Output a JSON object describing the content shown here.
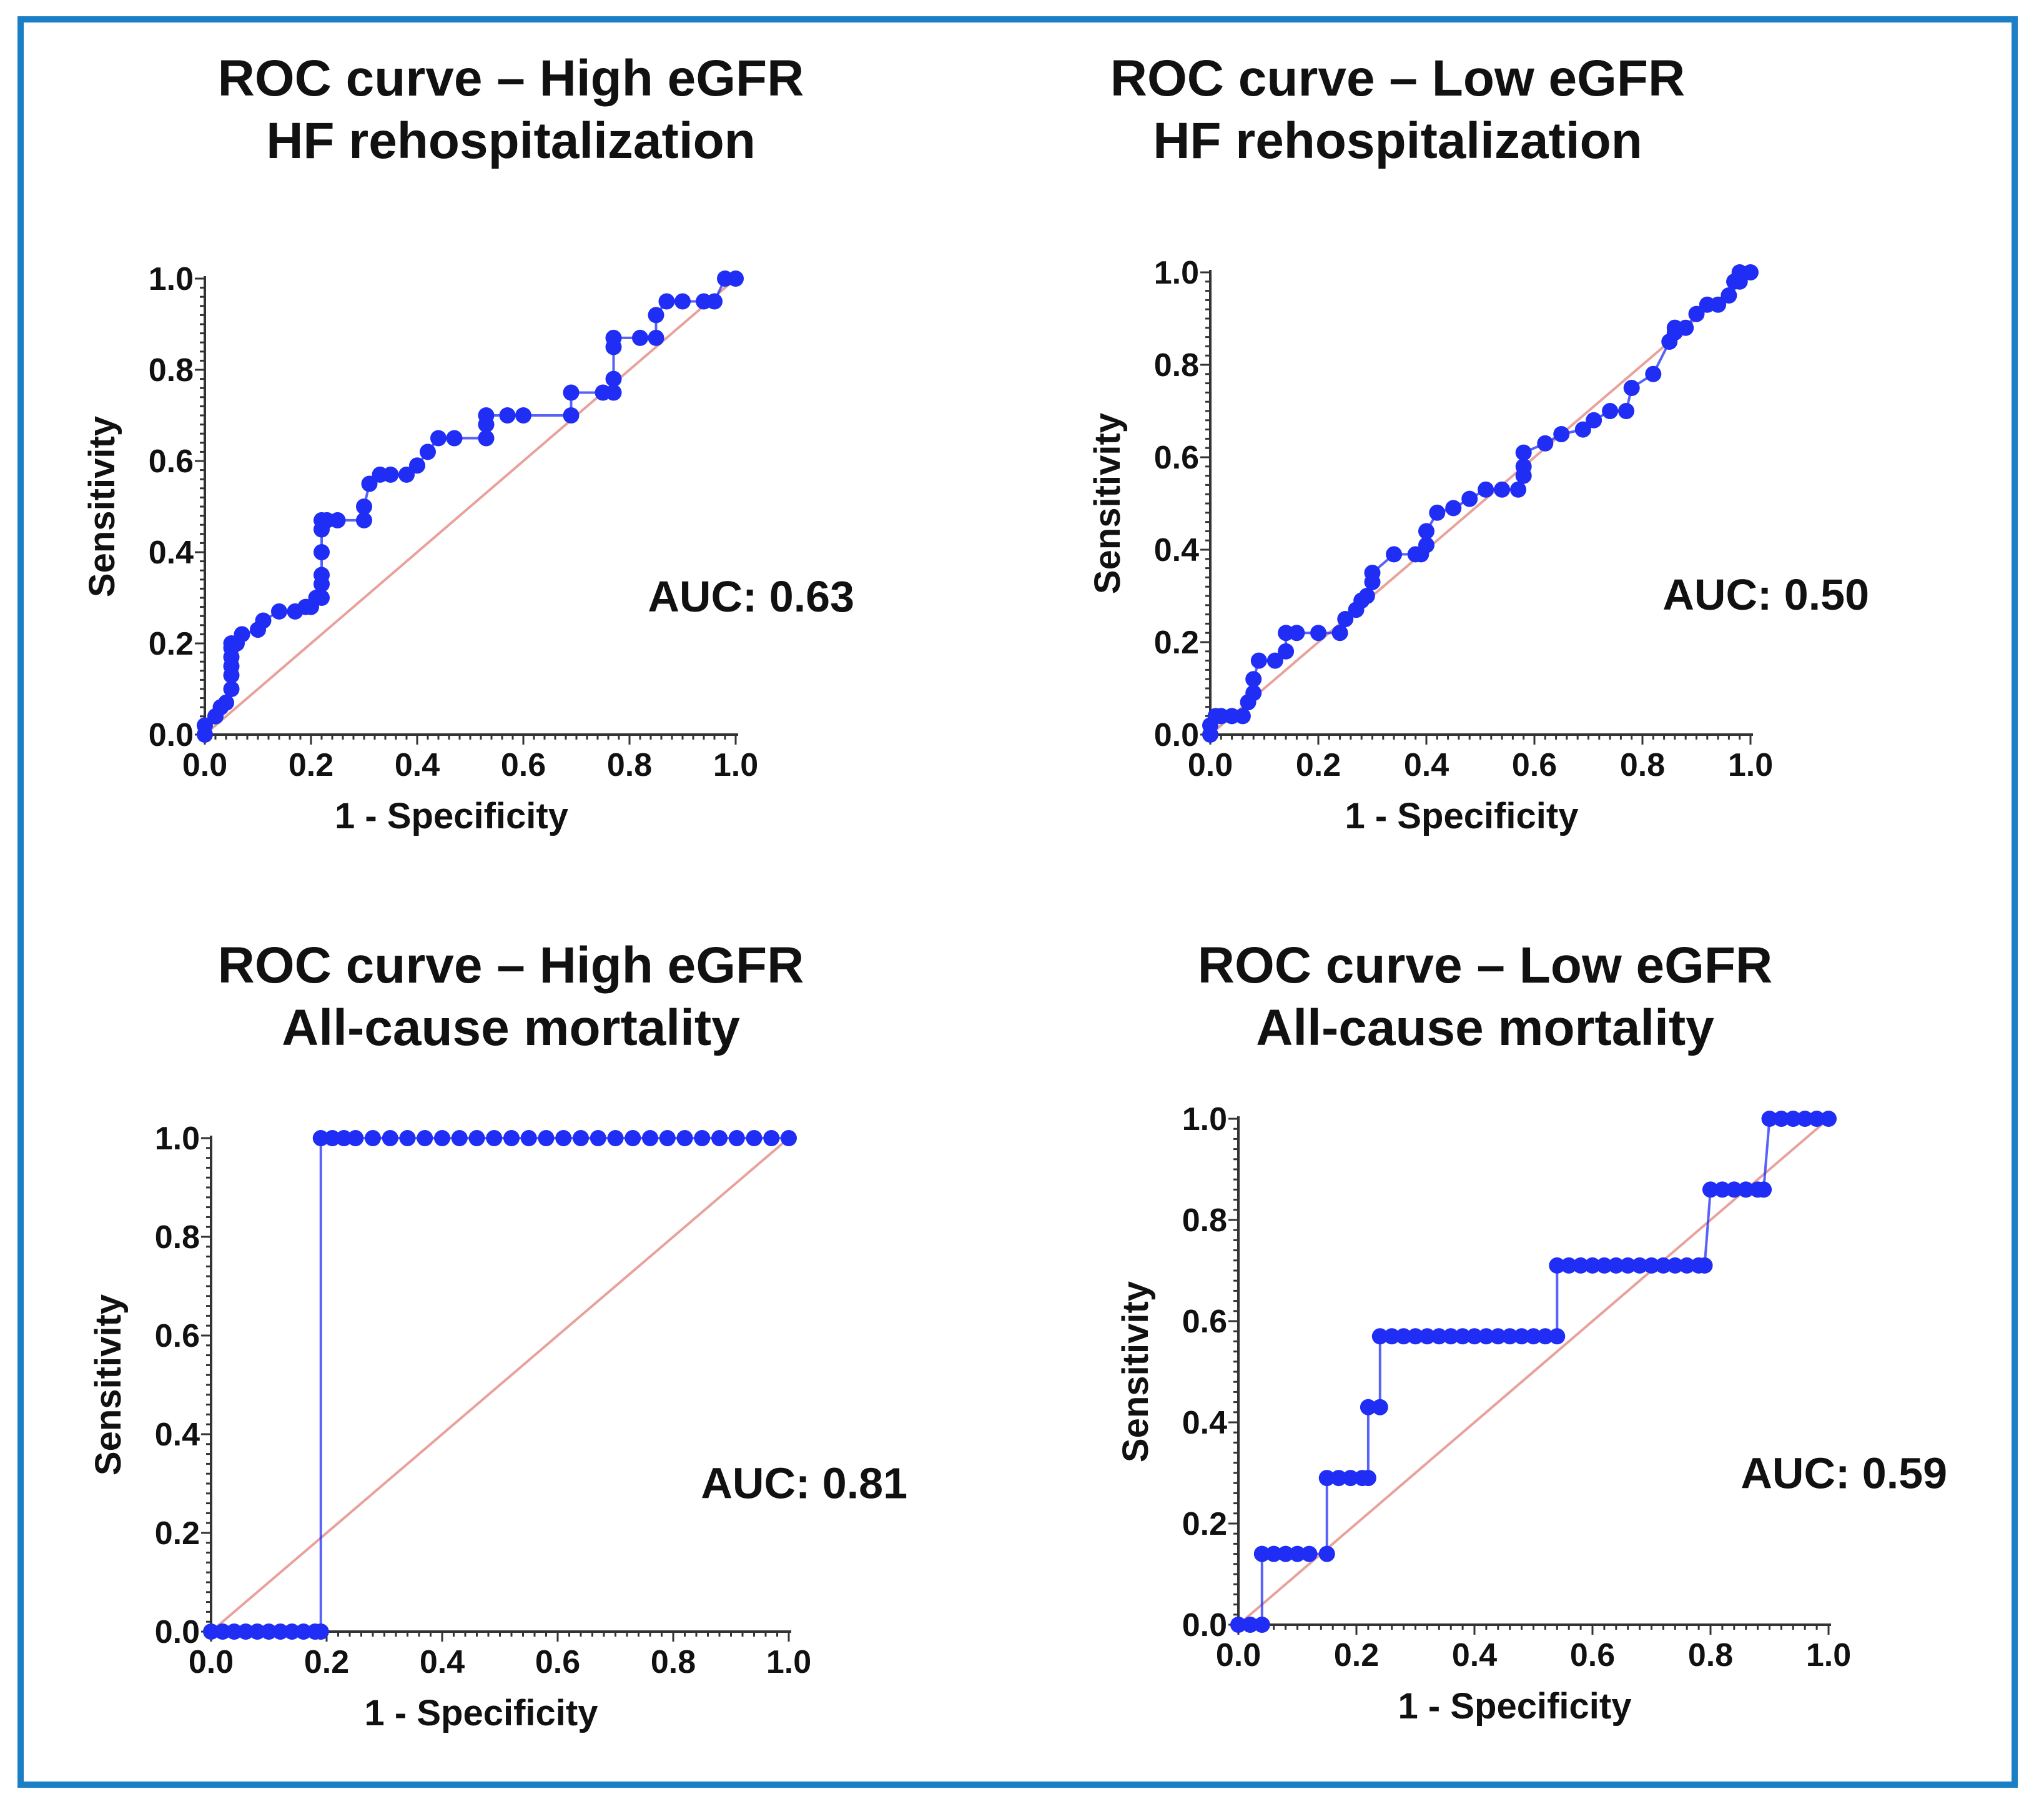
{
  "colors": {
    "frame": "#1a7fc4",
    "curve": "#1f2df5",
    "reference": "#e8a19b",
    "axis": "#333333"
  },
  "chart_data": [
    {
      "type": "line",
      "title_line1": "ROC curve – High eGFR",
      "title_line2": "HF rehospitalization",
      "xlabel": "1 - Specificity",
      "ylabel": "Sensitivity",
      "xlim": [
        0,
        1
      ],
      "ylim": [
        0,
        1
      ],
      "xticks": [
        "0.0",
        "0.2",
        "0.4",
        "0.6",
        "0.8",
        "1.0"
      ],
      "yticks": [
        "0.0",
        "0.2",
        "0.4",
        "0.6",
        "0.8",
        "1.0"
      ],
      "annotation": "AUC: 0.63",
      "reference_line": true,
      "series": [
        {
          "x": [
            0,
            0,
            0.02,
            0.03,
            0.04,
            0.05,
            0.05,
            0.05,
            0.05,
            0.05,
            0.05,
            0.06,
            0.07,
            0.1,
            0.11,
            0.14,
            0.17,
            0.19,
            0.2,
            0.21,
            0.22,
            0.22,
            0.22,
            0.22,
            0.22,
            0.22,
            0.23,
            0.25,
            0.3,
            0.3,
            0.31,
            0.33,
            0.35,
            0.38,
            0.4,
            0.42,
            0.44,
            0.47,
            0.53,
            0.53,
            0.53,
            0.57,
            0.6,
            0.69,
            0.69,
            0.75,
            0.77,
            0.77,
            0.77,
            0.77,
            0.82,
            0.85,
            0.85,
            0.87,
            0.9,
            0.94,
            0.96,
            0.98,
            1.0
          ],
          "y": [
            0,
            0.02,
            0.04,
            0.06,
            0.07,
            0.1,
            0.13,
            0.15,
            0.17,
            0.19,
            0.2,
            0.2,
            0.22,
            0.23,
            0.25,
            0.27,
            0.27,
            0.28,
            0.28,
            0.3,
            0.3,
            0.33,
            0.35,
            0.4,
            0.45,
            0.47,
            0.47,
            0.47,
            0.47,
            0.5,
            0.55,
            0.57,
            0.57,
            0.57,
            0.59,
            0.62,
            0.65,
            0.65,
            0.65,
            0.68,
            0.7,
            0.7,
            0.7,
            0.7,
            0.75,
            0.75,
            0.75,
            0.78,
            0.85,
            0.87,
            0.87,
            0.87,
            0.92,
            0.95,
            0.95,
            0.95,
            0.95,
            1.0,
            1.0
          ]
        }
      ]
    },
    {
      "type": "line",
      "title_line1": "ROC curve – Low eGFR",
      "title_line2": "HF rehospitalization",
      "xlabel": "1 - Specificity",
      "ylabel": "Sensitivity",
      "xlim": [
        0,
        1
      ],
      "ylim": [
        0,
        1
      ],
      "xticks": [
        "0.0",
        "0.2",
        "0.4",
        "0.6",
        "0.8",
        "1.0"
      ],
      "yticks": [
        "0.0",
        "0.2",
        "0.4",
        "0.6",
        "0.8",
        "1.0"
      ],
      "annotation": "AUC: 0.50",
      "reference_line": true,
      "series": [
        {
          "x": [
            0,
            0,
            0.01,
            0.02,
            0.04,
            0.06,
            0.07,
            0.08,
            0.08,
            0.09,
            0.12,
            0.14,
            0.14,
            0.16,
            0.2,
            0.24,
            0.25,
            0.27,
            0.28,
            0.29,
            0.3,
            0.3,
            0.34,
            0.38,
            0.39,
            0.4,
            0.4,
            0.42,
            0.45,
            0.48,
            0.51,
            0.54,
            0.57,
            0.58,
            0.58,
            0.58,
            0.62,
            0.65,
            0.69,
            0.71,
            0.74,
            0.77,
            0.78,
            0.82,
            0.85,
            0.86,
            0.86,
            0.86,
            0.88,
            0.9,
            0.92,
            0.94,
            0.96,
            0.97,
            0.98,
            0.98,
            1.0
          ],
          "y": [
            0,
            0.02,
            0.04,
            0.04,
            0.04,
            0.04,
            0.07,
            0.09,
            0.12,
            0.16,
            0.16,
            0.18,
            0.22,
            0.22,
            0.22,
            0.22,
            0.25,
            0.27,
            0.29,
            0.3,
            0.33,
            0.35,
            0.39,
            0.39,
            0.39,
            0.41,
            0.44,
            0.48,
            0.49,
            0.51,
            0.53,
            0.53,
            0.53,
            0.56,
            0.58,
            0.61,
            0.63,
            0.65,
            0.66,
            0.68,
            0.7,
            0.7,
            0.75,
            0.78,
            0.85,
            0.87,
            0.88,
            0.88,
            0.88,
            0.91,
            0.93,
            0.93,
            0.95,
            0.98,
            0.98,
            1.0,
            1.0
          ]
        }
      ]
    },
    {
      "type": "line",
      "title_line1": "ROC curve – High eGFR",
      "title_line2": "All-cause mortality",
      "xlabel": "1 - Specificity",
      "ylabel": "Sensitivity",
      "xlim": [
        0,
        1
      ],
      "ylim": [
        0,
        1
      ],
      "xticks": [
        "0.0",
        "0.2",
        "0.4",
        "0.6",
        "0.8",
        "1.0"
      ],
      "yticks": [
        "0.0",
        "0.2",
        "0.4",
        "0.6",
        "0.8",
        "1.0"
      ],
      "annotation": "AUC: 0.81",
      "reference_line": true,
      "series": [
        {
          "x": [
            0,
            0.02,
            0.04,
            0.06,
            0.08,
            0.1,
            0.12,
            0.14,
            0.16,
            0.18,
            0.19,
            0.19,
            0.21,
            0.23,
            0.25,
            0.28,
            0.31,
            0.34,
            0.37,
            0.4,
            0.43,
            0.46,
            0.49,
            0.52,
            0.55,
            0.58,
            0.61,
            0.64,
            0.67,
            0.7,
            0.73,
            0.76,
            0.79,
            0.82,
            0.85,
            0.88,
            0.91,
            0.94,
            0.97,
            1.0
          ],
          "y": [
            0,
            0,
            0,
            0,
            0,
            0,
            0,
            0,
            0,
            0,
            0,
            1,
            1,
            1,
            1,
            1,
            1,
            1,
            1,
            1,
            1,
            1,
            1,
            1,
            1,
            1,
            1,
            1,
            1,
            1,
            1,
            1,
            1,
            1,
            1,
            1,
            1,
            1,
            1,
            1
          ]
        }
      ]
    },
    {
      "type": "line",
      "title_line1": "ROC curve – Low eGFR",
      "title_line2": "All-cause mortality",
      "xlabel": "1 - Specificity",
      "ylabel": "Sensitivity",
      "xlim": [
        0,
        1
      ],
      "ylim": [
        0,
        1
      ],
      "xticks": [
        "0.0",
        "0.2",
        "0.4",
        "0.6",
        "0.8",
        "1.0"
      ],
      "yticks": [
        "0.0",
        "0.2",
        "0.4",
        "0.6",
        "0.8",
        "1.0"
      ],
      "annotation": "AUC: 0.59",
      "reference_line": true,
      "series": [
        {
          "x": [
            0,
            0.02,
            0.04,
            0.04,
            0.06,
            0.08,
            0.1,
            0.12,
            0.15,
            0.15,
            0.17,
            0.19,
            0.21,
            0.22,
            0.22,
            0.24,
            0.24,
            0.26,
            0.28,
            0.3,
            0.32,
            0.34,
            0.36,
            0.38,
            0.4,
            0.42,
            0.44,
            0.46,
            0.48,
            0.5,
            0.52,
            0.54,
            0.54,
            0.56,
            0.58,
            0.6,
            0.62,
            0.64,
            0.66,
            0.68,
            0.7,
            0.72,
            0.74,
            0.76,
            0.78,
            0.79,
            0.8,
            0.82,
            0.84,
            0.86,
            0.88,
            0.89,
            0.9,
            0.92,
            0.94,
            0.96,
            0.98,
            1.0
          ],
          "y": [
            0,
            0,
            0,
            0.14,
            0.14,
            0.14,
            0.14,
            0.14,
            0.14,
            0.29,
            0.29,
            0.29,
            0.29,
            0.29,
            0.43,
            0.43,
            0.57,
            0.57,
            0.57,
            0.57,
            0.57,
            0.57,
            0.57,
            0.57,
            0.57,
            0.57,
            0.57,
            0.57,
            0.57,
            0.57,
            0.57,
            0.57,
            0.71,
            0.71,
            0.71,
            0.71,
            0.71,
            0.71,
            0.71,
            0.71,
            0.71,
            0.71,
            0.71,
            0.71,
            0.71,
            0.71,
            0.86,
            0.86,
            0.86,
            0.86,
            0.86,
            0.86,
            1.0,
            1.0,
            1.0,
            1.0,
            1.0,
            1.0
          ]
        }
      ]
    }
  ]
}
